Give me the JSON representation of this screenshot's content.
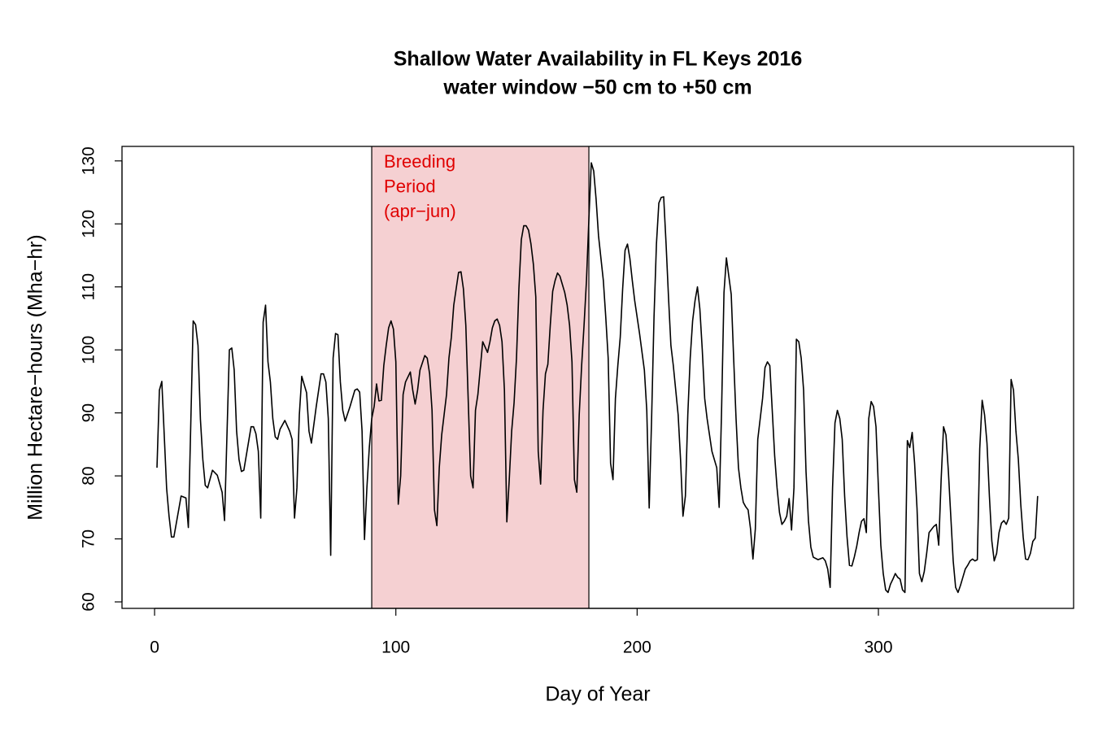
{
  "chart_data": {
    "type": "line",
    "title": "Shallow Water Availability in FL Keys 2016",
    "subtitle": "water window −50 cm to +50 cm",
    "x_label": "Day of Year",
    "y_label": "Million Hectare−hours (Mha−hr)",
    "xlim": [
      -13.5,
      380.9
    ],
    "ylim": [
      58.97,
      132.3
    ],
    "xticks": [
      0,
      100,
      200,
      300
    ],
    "yticks": [
      60,
      70,
      80,
      90,
      100,
      110,
      120,
      130
    ],
    "shaded_region": {
      "x": [
        90,
        180
      ],
      "color": "#f5d0d2",
      "text_color": "#e00000",
      "label": [
        "Breeding",
        "Period",
        "(apr−jun)"
      ]
    },
    "series": [
      {
        "color": "#000000",
        "x": [
          1,
          2,
          3,
          5,
          6,
          7,
          8,
          11,
          13,
          14,
          16,
          17,
          18,
          19,
          20,
          21,
          22,
          24,
          26,
          28,
          29,
          31,
          32,
          33,
          34,
          35,
          36,
          37,
          40,
          41,
          42,
          43,
          44,
          45,
          46,
          47,
          48,
          49,
          50,
          51,
          52,
          54,
          56,
          57,
          58,
          59,
          60,
          61,
          63,
          64,
          65,
          67,
          69,
          70,
          71,
          72,
          73,
          74,
          75,
          76,
          77,
          78,
          79,
          81,
          83,
          84,
          85,
          86,
          87,
          88,
          89,
          90,
          91,
          92,
          93,
          94,
          95,
          96,
          97,
          98,
          99,
          100,
          101,
          102,
          103,
          104,
          106,
          107,
          108,
          109,
          110,
          112,
          113,
          114,
          115,
          116,
          117,
          118,
          119,
          121,
          122,
          123,
          124,
          125,
          126,
          127,
          128,
          129,
          131,
          132,
          133,
          134,
          136,
          138,
          139,
          140,
          141,
          142,
          143,
          144,
          145,
          146,
          147,
          148,
          149,
          150,
          151,
          152,
          153,
          154,
          155,
          156,
          157,
          158,
          159,
          160,
          161,
          162,
          163,
          164,
          165,
          166,
          167,
          168,
          169,
          170,
          171,
          172,
          173,
          174,
          175,
          176,
          177,
          178,
          179,
          180,
          181,
          182,
          183,
          184,
          186,
          187,
          188,
          189,
          190,
          191,
          192,
          193,
          194,
          195,
          196,
          197,
          198,
          199,
          201,
          203,
          204,
          205,
          206,
          207,
          208,
          209,
          210,
          211,
          212,
          213,
          214,
          215,
          217,
          218,
          219,
          220,
          221,
          222,
          223,
          224,
          225,
          226,
          227,
          228,
          229,
          230,
          231,
          232,
          233,
          234,
          235,
          236,
          237,
          238,
          239,
          240,
          241,
          242,
          243,
          244,
          245,
          246,
          247,
          248,
          249,
          250,
          252,
          253,
          254,
          255,
          256,
          257,
          258,
          259,
          260,
          261,
          262,
          263,
          264,
          265,
          266,
          267,
          268,
          269,
          270,
          271,
          272,
          273,
          275,
          277,
          278,
          279,
          280,
          281,
          282,
          283,
          284,
          285,
          286,
          287,
          288,
          289,
          290,
          291,
          292,
          293,
          294,
          295,
          296,
          297,
          298,
          299,
          300,
          301,
          302,
          303,
          304,
          305,
          306,
          307,
          308,
          309,
          310,
          311,
          312,
          313,
          314,
          315,
          316,
          317,
          318,
          319,
          320,
          321,
          323,
          324,
          325,
          326,
          327,
          328,
          329,
          330,
          331,
          332,
          333,
          334,
          335,
          336,
          337,
          338,
          339,
          340,
          341,
          342,
          343,
          344,
          345,
          346,
          347,
          348,
          349,
          350,
          351,
          352,
          353,
          354,
          355,
          356,
          357,
          358,
          359,
          360,
          361,
          362,
          363,
          364,
          365,
          366
        ],
        "values": [
          81.3,
          93.6,
          95,
          78,
          73.6,
          70.3,
          70.3,
          76.8,
          76.5,
          71.8,
          104.6,
          104,
          100.7,
          89,
          82.6,
          78.5,
          78.1,
          80.9,
          80.1,
          77.4,
          72.9,
          100,
          100.3,
          96.8,
          87.1,
          82.6,
          80.7,
          80.9,
          87.8,
          87.8,
          86.7,
          83.9,
          73.3,
          104.4,
          107.1,
          98.1,
          94.9,
          89.1,
          86.2,
          85.8,
          87.4,
          88.8,
          87.1,
          85.8,
          73.3,
          78.1,
          89.7,
          95.8,
          93.2,
          87.1,
          85.2,
          91,
          96.2,
          96.2,
          94.9,
          89.1,
          67.4,
          98.7,
          102.6,
          102.4,
          94.9,
          90.4,
          88.7,
          91,
          93.6,
          93.8,
          93.3,
          87.1,
          69.9,
          78.1,
          84.5,
          89.1,
          91,
          94.6,
          91.9,
          92,
          97.5,
          100.7,
          103.5,
          104.6,
          103.3,
          98.1,
          75.5,
          80,
          92.9,
          94.9,
          96.5,
          93.6,
          91.4,
          93.6,
          96.8,
          99.1,
          98.7,
          96.2,
          90.4,
          74.6,
          72.1,
          81.3,
          86.5,
          92.9,
          98.7,
          102,
          107.1,
          109.7,
          112.3,
          112.4,
          109.7,
          103.9,
          80,
          78.1,
          90.4,
          92.9,
          101.3,
          99.6,
          101.3,
          103.5,
          104.6,
          104.9,
          103.9,
          101.3,
          93.6,
          72.7,
          79.4,
          87.1,
          91.6,
          98.7,
          109.7,
          117.5,
          119.7,
          119.7,
          119,
          116.8,
          113.6,
          108.4,
          83.9,
          78.7,
          90.4,
          96.2,
          97.7,
          103.9,
          109.3,
          111,
          112.2,
          111.7,
          110.4,
          109.1,
          107.1,
          103.9,
          98.1,
          79.4,
          77.4,
          89.7,
          97.5,
          103.9,
          111,
          120.7,
          129.7,
          128.4,
          123.9,
          118.1,
          111,
          105.2,
          98.7,
          82,
          79.4,
          92.3,
          97.5,
          102,
          109.7,
          115.8,
          116.8,
          114.5,
          111,
          107.8,
          102.6,
          96.8,
          90.4,
          74.9,
          89.1,
          105.2,
          116.8,
          123.3,
          124.2,
          124.3,
          116.8,
          108.4,
          100.7,
          97.5,
          89.7,
          82.6,
          73.6,
          76.8,
          89.7,
          98.7,
          104.6,
          107.8,
          110,
          106.5,
          100,
          92.3,
          89.1,
          86.5,
          83.9,
          82.6,
          81.3,
          75,
          90.4,
          109.1,
          114.6,
          111.7,
          108.8,
          98.7,
          89.1,
          81.3,
          78.1,
          75.8,
          75.1,
          74.6,
          71.6,
          66.8,
          71.6,
          85.8,
          92.3,
          97.2,
          98.1,
          97.5,
          90.4,
          83.2,
          78.1,
          74.2,
          72.3,
          72.8,
          73.6,
          76.4,
          71.4,
          78.1,
          101.7,
          101.3,
          98.7,
          93.6,
          80.7,
          72.9,
          68.7,
          67.1,
          66.7,
          67,
          66.5,
          65.2,
          62.3,
          78.1,
          88.4,
          90.4,
          89.1,
          85.8,
          76.8,
          70.3,
          65.8,
          65.7,
          67.1,
          68.8,
          71,
          72.8,
          73.2,
          71,
          89.1,
          91.8,
          91,
          87.8,
          78.1,
          69,
          64.5,
          61.9,
          61.5,
          62.8,
          63.6,
          64.5,
          63.9,
          63.6,
          61.9,
          61.5,
          85.6,
          84.5,
          86.9,
          82,
          74.9,
          64.5,
          63.2,
          64.8,
          67.7,
          71,
          72,
          72.3,
          69,
          79.4,
          87.8,
          86.5,
          80.7,
          73.6,
          66.5,
          62.3,
          61.5,
          62.6,
          63.9,
          65.2,
          65.8,
          66.5,
          66.8,
          66.5,
          66.7,
          84.3,
          92,
          89.7,
          85.2,
          76.8,
          69.7,
          66.5,
          67.7,
          71,
          72.5,
          72.9,
          72.3,
          73.3,
          95.3,
          93.6,
          87.1,
          82.6,
          75.5,
          70.3,
          66.8,
          66.7,
          67.7,
          69.6,
          70.1,
          76.8
        ]
      }
    ]
  }
}
